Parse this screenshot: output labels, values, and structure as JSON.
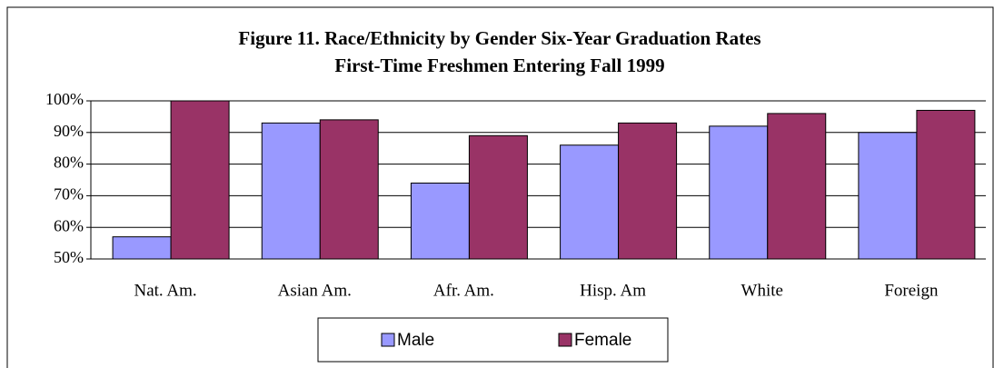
{
  "chart_data": {
    "type": "bar",
    "title": "Figure 11. Race/Ethnicity by Gender Six-Year Graduation Rates",
    "subtitle": "First-Time Freshmen Entering Fall 1999",
    "categories": [
      "Nat. Am.",
      "Asian Am.",
      "Afr. Am.",
      "Hisp. Am",
      "White",
      "Foreign"
    ],
    "series": [
      {
        "name": "Male",
        "color": "#9999ff",
        "values": [
          57,
          93,
          74,
          86,
          92,
          90
        ]
      },
      {
        "name": "Female",
        "color": "#993366",
        "values": [
          100,
          94,
          89,
          93,
          96,
          97
        ]
      }
    ],
    "ylim": [
      50,
      100
    ],
    "yticks": [
      {
        "value": 50,
        "label": "50%"
      },
      {
        "value": 60,
        "label": "60%"
      },
      {
        "value": 70,
        "label": "70%"
      },
      {
        "value": 80,
        "label": "80%"
      },
      {
        "value": 90,
        "label": "90%"
      },
      {
        "value": 100,
        "label": "100%"
      }
    ],
    "grid": true,
    "legend": "bottom"
  }
}
